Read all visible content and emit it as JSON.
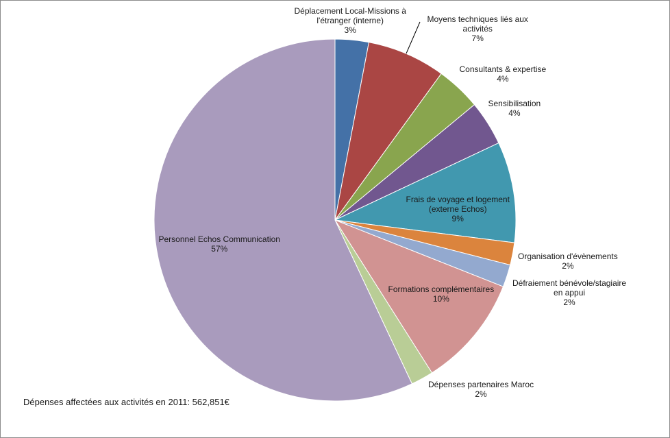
{
  "chart_data": {
    "type": "pie",
    "slices": [
      {
        "label": "Déplacement Local-Missions à l'étranger (interne)",
        "label_lines": [
          "Déplacement Local-Missions à",
          "l'étranger (interne)"
        ],
        "percent_label": "3%",
        "value": 3,
        "color": "#4471A7"
      },
      {
        "label": "Moyens techniques liés aux activités",
        "label_lines": [
          "Moyens techniques liés aux",
          "activités"
        ],
        "percent_label": "7%",
        "value": 7,
        "color": "#AA4644"
      },
      {
        "label": "Consultants & expertise",
        "label_lines": [
          "Consultants & expertise"
        ],
        "percent_label": "4%",
        "value": 4,
        "color": "#89A54E"
      },
      {
        "label": "Sensibilisation",
        "label_lines": [
          "Sensibilisation"
        ],
        "percent_label": "4%",
        "value": 4,
        "color": "#71578F"
      },
      {
        "label": "Frais de voyage et logement (externe Echos)",
        "label_lines": [
          "Frais de voyage et  logement",
          "(externe  Echos)"
        ],
        "percent_label": "9%",
        "value": 9,
        "color": "#4198AF"
      },
      {
        "label": "Organisation d'évènements",
        "label_lines": [
          "Organisation d'évènements"
        ],
        "percent_label": "2%",
        "value": 2,
        "color": "#DB843D"
      },
      {
        "label": "Défraiement bénévole/stagiaire en appui",
        "label_lines": [
          "Défraiement bénévole/stagiaire",
          "en appui"
        ],
        "percent_label": "2%",
        "value": 2,
        "color": "#93A9CF"
      },
      {
        "label": "Formations complémentaires",
        "label_lines": [
          "Formations complémentaires"
        ],
        "percent_label": "10%",
        "value": 10,
        "color": "#D19392"
      },
      {
        "label": "Dépenses partenaires Maroc",
        "label_lines": [
          "Dépenses partenaires Maroc"
        ],
        "percent_label": "2%",
        "value": 2,
        "color": "#B9CD96"
      },
      {
        "label": "Personnel Echos Communication",
        "label_lines": [
          "Personnel Echos Communication"
        ],
        "percent_label": "57%",
        "value": 57,
        "color": "#A99BBD"
      }
    ],
    "legend": "none",
    "start_angle": "top, clockwise"
  },
  "footnote": "Dépenses affectées aux activités en 2011:  562,851€"
}
